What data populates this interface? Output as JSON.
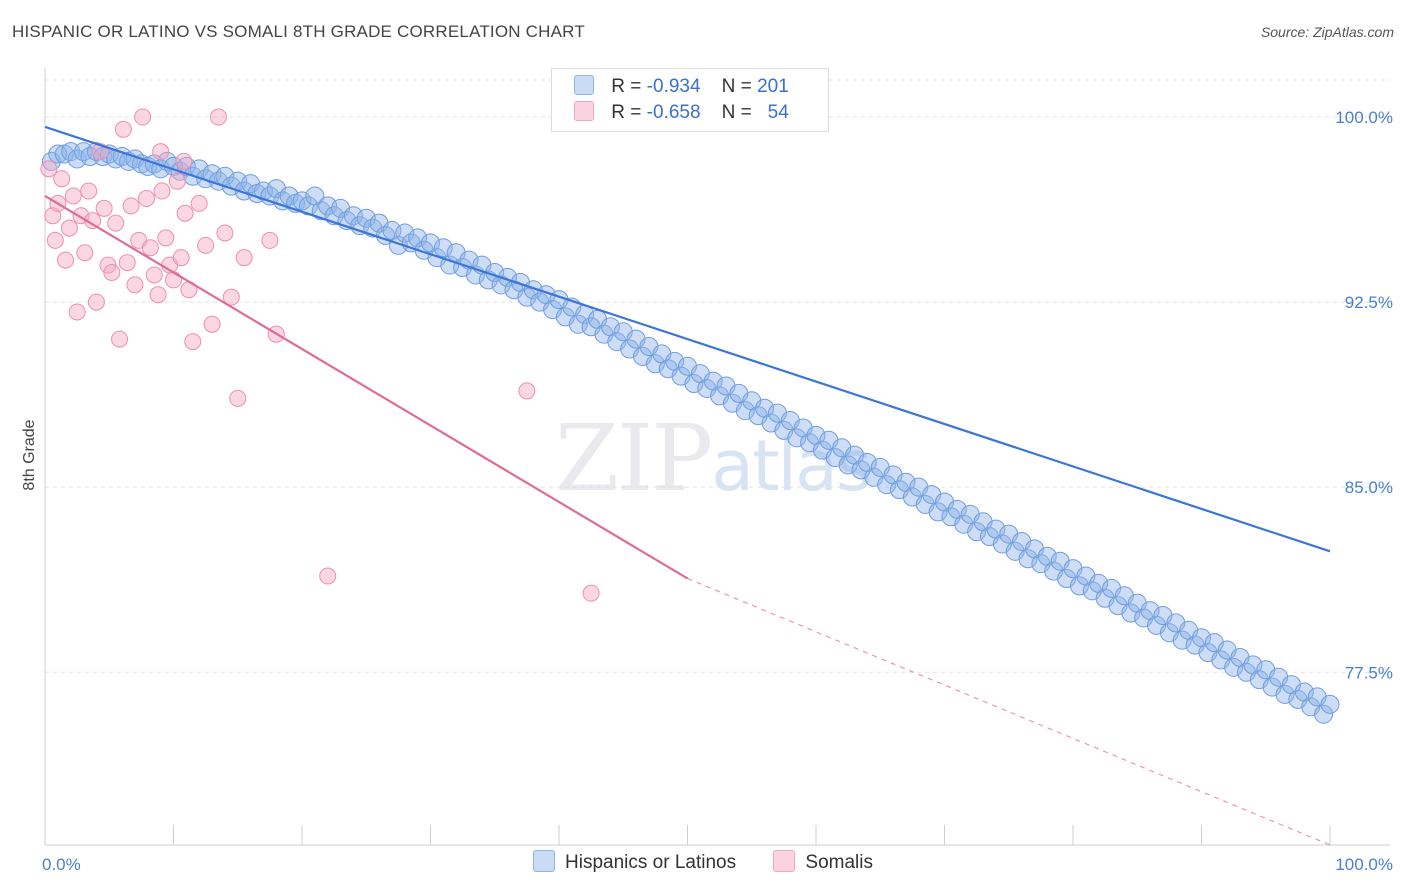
{
  "header": {
    "title": "HISPANIC OR LATINO VS SOMALI 8TH GRADE CORRELATION CHART",
    "source": "Source: ZipAtlas.com"
  },
  "watermark": {
    "zip": "ZIP",
    "atlas": "atlas"
  },
  "legend": {
    "rows": [
      {
        "r_label": "R =",
        "r_value": "-0.934",
        "n_label": "N =",
        "n_value": "201",
        "color": "#8fb4e8"
      },
      {
        "r_label": "R =",
        "r_value": "-0.658",
        "n_label": "N =",
        "n_value": "54",
        "color": "#f4a6c0"
      }
    ]
  },
  "bottom_legend": [
    {
      "label": "Hispanics or Latinos",
      "color": "#8fb4e8"
    },
    {
      "label": "Somalis",
      "color": "#f4a6c0"
    }
  ],
  "chart_data": {
    "type": "scatter",
    "title": "HISPANIC OR LATINO VS SOMALI 8TH GRADE CORRELATION CHART",
    "xlabel": "",
    "ylabel": "8th Grade",
    "xlim": [
      0,
      100
    ],
    "ylim": [
      70.5,
      101.5
    ],
    "x_tick_labels": [
      "0.0%",
      "100.0%"
    ],
    "y_ticks": [
      100.0,
      92.5,
      85.0,
      77.5
    ],
    "y_tick_labels": [
      "100.0%",
      "92.5%",
      "85.0%",
      "77.5%"
    ],
    "grid": "horizontal dashed",
    "colors": {
      "blue": "#8fb4e8",
      "blue_line": "#3b75d6",
      "pink": "#f4a6c0",
      "pink_line": "#e06b95"
    },
    "series": [
      {
        "name": "Hispanics or Latinos",
        "trend": {
          "x0": 0,
          "y0": 99.6,
          "x1": 100,
          "y1": 82.4
        },
        "points": [
          [
            0.5,
            98.2
          ],
          [
            1,
            98.5
          ],
          [
            1.5,
            98.5
          ],
          [
            2,
            98.6
          ],
          [
            2.5,
            98.3
          ],
          [
            3,
            98.6
          ],
          [
            3.5,
            98.4
          ],
          [
            4,
            98.6
          ],
          [
            4.5,
            98.4
          ],
          [
            5,
            98.5
          ],
          [
            5.5,
            98.3
          ],
          [
            6,
            98.4
          ],
          [
            6.5,
            98.2
          ],
          [
            7,
            98.3
          ],
          [
            7.5,
            98.1
          ],
          [
            8,
            98.0
          ],
          [
            8.5,
            98.1
          ],
          [
            9,
            97.9
          ],
          [
            9.5,
            98.2
          ],
          [
            10,
            98.0
          ],
          [
            10.5,
            97.8
          ],
          [
            11,
            98.0
          ],
          [
            11.5,
            97.6
          ],
          [
            12,
            97.9
          ],
          [
            12.5,
            97.5
          ],
          [
            13,
            97.7
          ],
          [
            13.5,
            97.4
          ],
          [
            14,
            97.6
          ],
          [
            14.5,
            97.2
          ],
          [
            15,
            97.4
          ],
          [
            15.5,
            97.0
          ],
          [
            16,
            97.3
          ],
          [
            16.5,
            96.9
          ],
          [
            17,
            97.0
          ],
          [
            17.5,
            96.8
          ],
          [
            18,
            97.1
          ],
          [
            18.5,
            96.6
          ],
          [
            19,
            96.8
          ],
          [
            19.5,
            96.5
          ],
          [
            20,
            96.6
          ],
          [
            20.5,
            96.4
          ],
          [
            21,
            96.8
          ],
          [
            21.5,
            96.2
          ],
          [
            22,
            96.4
          ],
          [
            22.5,
            96.0
          ],
          [
            23,
            96.3
          ],
          [
            23.5,
            95.8
          ],
          [
            24,
            96.0
          ],
          [
            24.5,
            95.6
          ],
          [
            25,
            95.9
          ],
          [
            25.5,
            95.5
          ],
          [
            26,
            95.7
          ],
          [
            26.5,
            95.2
          ],
          [
            27,
            95.4
          ],
          [
            27.5,
            94.8
          ],
          [
            28,
            95.3
          ],
          [
            28.5,
            94.9
          ],
          [
            29,
            95.1
          ],
          [
            29.5,
            94.6
          ],
          [
            30,
            94.9
          ],
          [
            30.5,
            94.3
          ],
          [
            31,
            94.7
          ],
          [
            31.5,
            94.0
          ],
          [
            32,
            94.5
          ],
          [
            32.5,
            93.9
          ],
          [
            33,
            94.2
          ],
          [
            33.5,
            93.6
          ],
          [
            34,
            94.0
          ],
          [
            34.5,
            93.4
          ],
          [
            35,
            93.7
          ],
          [
            35.5,
            93.2
          ],
          [
            36,
            93.5
          ],
          [
            36.5,
            93.0
          ],
          [
            37,
            93.3
          ],
          [
            37.5,
            92.7
          ],
          [
            38,
            93.0
          ],
          [
            38.5,
            92.5
          ],
          [
            39,
            92.8
          ],
          [
            39.5,
            92.2
          ],
          [
            40,
            92.6
          ],
          [
            40.5,
            91.9
          ],
          [
            41,
            92.3
          ],
          [
            41.5,
            91.6
          ],
          [
            42,
            92.0
          ],
          [
            42.5,
            91.5
          ],
          [
            43,
            91.8
          ],
          [
            43.5,
            91.2
          ],
          [
            44,
            91.5
          ],
          [
            44.5,
            90.9
          ],
          [
            45,
            91.3
          ],
          [
            45.5,
            90.6
          ],
          [
            46,
            91.0
          ],
          [
            46.5,
            90.3
          ],
          [
            47,
            90.7
          ],
          [
            47.5,
            90.0
          ],
          [
            48,
            90.4
          ],
          [
            48.5,
            89.8
          ],
          [
            49,
            90.1
          ],
          [
            49.5,
            89.5
          ],
          [
            50,
            89.9
          ],
          [
            50.5,
            89.2
          ],
          [
            51,
            89.6
          ],
          [
            51.5,
            89.0
          ],
          [
            52,
            89.3
          ],
          [
            52.5,
            88.7
          ],
          [
            53,
            89.1
          ],
          [
            53.5,
            88.4
          ],
          [
            54,
            88.8
          ],
          [
            54.5,
            88.1
          ],
          [
            55,
            88.5
          ],
          [
            55.5,
            87.9
          ],
          [
            56,
            88.2
          ],
          [
            56.5,
            87.6
          ],
          [
            57,
            88.0
          ],
          [
            57.5,
            87.3
          ],
          [
            58,
            87.7
          ],
          [
            58.5,
            87.0
          ],
          [
            59,
            87.4
          ],
          [
            59.5,
            86.8
          ],
          [
            60,
            87.1
          ],
          [
            60.5,
            86.5
          ],
          [
            61,
            86.9
          ],
          [
            61.5,
            86.2
          ],
          [
            62,
            86.6
          ],
          [
            62.5,
            85.9
          ],
          [
            63,
            86.3
          ],
          [
            63.5,
            85.7
          ],
          [
            64,
            86.0
          ],
          [
            64.5,
            85.4
          ],
          [
            65,
            85.8
          ],
          [
            65.5,
            85.1
          ],
          [
            66,
            85.5
          ],
          [
            66.5,
            84.9
          ],
          [
            67,
            85.2
          ],
          [
            67.5,
            84.6
          ],
          [
            68,
            85.0
          ],
          [
            68.5,
            84.3
          ],
          [
            69,
            84.7
          ],
          [
            69.5,
            84.0
          ],
          [
            70,
            84.4
          ],
          [
            70.5,
            83.8
          ],
          [
            71,
            84.1
          ],
          [
            71.5,
            83.5
          ],
          [
            72,
            83.9
          ],
          [
            72.5,
            83.2
          ],
          [
            73,
            83.6
          ],
          [
            73.5,
            83.0
          ],
          [
            74,
            83.3
          ],
          [
            74.5,
            82.7
          ],
          [
            75,
            83.1
          ],
          [
            75.5,
            82.4
          ],
          [
            76,
            82.8
          ],
          [
            76.5,
            82.1
          ],
          [
            77,
            82.5
          ],
          [
            77.5,
            81.9
          ],
          [
            78,
            82.2
          ],
          [
            78.5,
            81.6
          ],
          [
            79,
            82.0
          ],
          [
            79.5,
            81.3
          ],
          [
            80,
            81.7
          ],
          [
            80.5,
            81.0
          ],
          [
            81,
            81.4
          ],
          [
            81.5,
            80.8
          ],
          [
            82,
            81.1
          ],
          [
            82.5,
            80.5
          ],
          [
            83,
            80.9
          ],
          [
            83.5,
            80.2
          ],
          [
            84,
            80.6
          ],
          [
            84.5,
            79.9
          ],
          [
            85,
            80.3
          ],
          [
            85.5,
            79.7
          ],
          [
            86,
            80.0
          ],
          [
            86.5,
            79.4
          ],
          [
            87,
            79.8
          ],
          [
            87.5,
            79.1
          ],
          [
            88,
            79.5
          ],
          [
            88.5,
            78.8
          ],
          [
            89,
            79.2
          ],
          [
            89.5,
            78.6
          ],
          [
            90,
            78.9
          ],
          [
            90.5,
            78.3
          ],
          [
            91,
            78.7
          ],
          [
            91.5,
            78.0
          ],
          [
            92,
            78.4
          ],
          [
            92.5,
            77.7
          ],
          [
            93,
            78.1
          ],
          [
            93.5,
            77.5
          ],
          [
            94,
            77.8
          ],
          [
            94.5,
            77.2
          ],
          [
            95,
            77.6
          ],
          [
            95.5,
            76.9
          ],
          [
            96,
            77.3
          ],
          [
            96.5,
            76.6
          ],
          [
            97,
            77.0
          ],
          [
            97.5,
            76.4
          ],
          [
            98,
            76.7
          ],
          [
            98.5,
            76.1
          ],
          [
            99,
            76.5
          ],
          [
            99.5,
            75.8
          ],
          [
            100,
            76.2
          ]
        ]
      },
      {
        "name": "Somalis",
        "trend": {
          "x0": 0,
          "y0": 96.8,
          "x1": 50,
          "y1": 81.3,
          "dash_to": {
            "x": 100,
            "y": 65.8
          }
        },
        "points": [
          [
            0.3,
            97.9
          ],
          [
            0.6,
            96.0
          ],
          [
            0.8,
            95.0
          ],
          [
            1.0,
            96.5
          ],
          [
            1.3,
            97.5
          ],
          [
            1.6,
            94.2
          ],
          [
            1.9,
            95.5
          ],
          [
            2.2,
            96.8
          ],
          [
            2.5,
            92.1
          ],
          [
            2.8,
            96.0
          ],
          [
            3.1,
            94.5
          ],
          [
            3.4,
            97.0
          ],
          [
            3.7,
            95.8
          ],
          [
            4.0,
            92.5
          ],
          [
            4.3,
            98.6
          ],
          [
            4.6,
            96.3
          ],
          [
            4.9,
            94.0
          ],
          [
            5.2,
            93.7
          ],
          [
            5.5,
            95.7
          ],
          [
            5.8,
            91.0
          ],
          [
            6.1,
            99.5
          ],
          [
            6.4,
            94.1
          ],
          [
            6.7,
            96.4
          ],
          [
            7.0,
            93.2
          ],
          [
            7.3,
            95.0
          ],
          [
            7.6,
            100.0
          ],
          [
            7.9,
            96.7
          ],
          [
            8.2,
            94.7
          ],
          [
            8.5,
            93.6
          ],
          [
            8.8,
            92.8
          ],
          [
            9.1,
            97.0
          ],
          [
            9.4,
            95.1
          ],
          [
            9.7,
            94.0
          ],
          [
            10.0,
            93.4
          ],
          [
            10.3,
            97.4
          ],
          [
            10.6,
            94.3
          ],
          [
            10.9,
            96.1
          ],
          [
            11.2,
            93.0
          ],
          [
            11.5,
            90.9
          ],
          [
            12.0,
            96.5
          ],
          [
            12.5,
            94.8
          ],
          [
            13.0,
            91.6
          ],
          [
            13.5,
            100.0
          ],
          [
            14.0,
            95.3
          ],
          [
            14.5,
            92.7
          ],
          [
            15.0,
            88.6
          ],
          [
            15.5,
            94.3
          ],
          [
            17.5,
            95.0
          ],
          [
            18.0,
            91.2
          ],
          [
            22.0,
            81.4
          ],
          [
            37.5,
            88.9
          ],
          [
            42.5,
            80.7
          ],
          [
            9.0,
            98.6
          ],
          [
            10.8,
            98.2
          ]
        ]
      }
    ]
  }
}
